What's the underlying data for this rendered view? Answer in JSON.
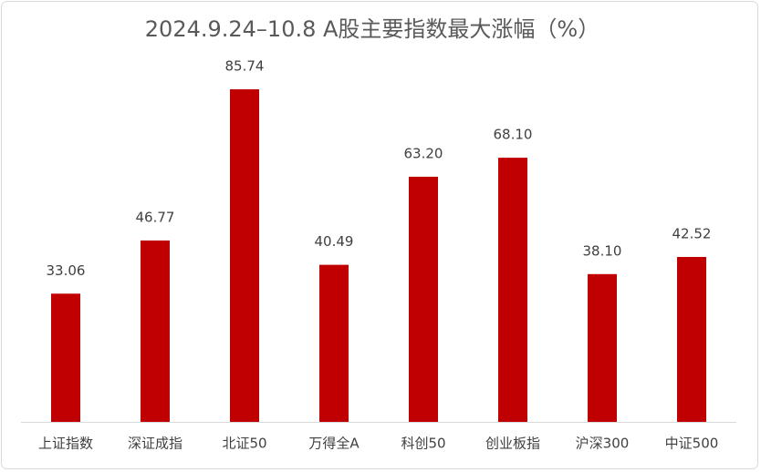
{
  "chart_data": {
    "type": "bar",
    "title": "2024.9.24–10.8 A股主要指数最大涨幅（%）",
    "categories": [
      "上证指数",
      "深证成指",
      "北证50",
      "万得全A",
      "科创50",
      "创业板指",
      "沪深300",
      "中证500"
    ],
    "values": [
      33.06,
      46.77,
      85.74,
      40.49,
      63.2,
      68.1,
      38.1,
      42.52
    ],
    "value_labels": [
      "33.06",
      "46.77",
      "85.74",
      "40.49",
      "63.20",
      "68.10",
      "38.10",
      "42.52"
    ],
    "color": "#c00000"
  }
}
